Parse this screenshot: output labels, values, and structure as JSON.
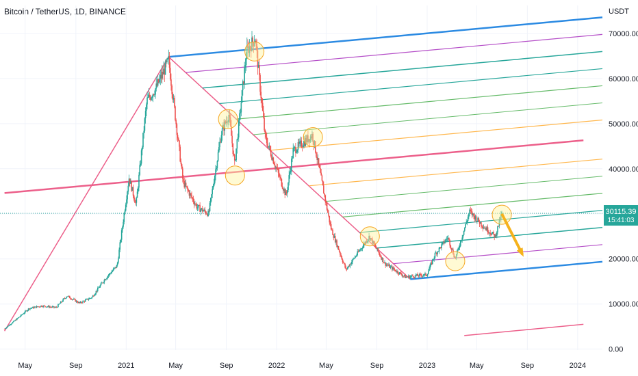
{
  "header": {
    "symbol_title": "Bitcoin / TetherUS, 1D, BINANCE"
  },
  "chart_data": {
    "type": "candlestick",
    "title": "Bitcoin / TetherUS, 1D, BINANCE",
    "quote_unit": "USDT",
    "ylim": [
      0,
      75000
    ],
    "xlim": [
      "2020-03-01",
      "2024-03-01"
    ],
    "y_ticks": [
      "70000.00",
      "60000.00",
      "50000.00",
      "40000.00",
      "30000.00",
      "20000.00",
      "10000.00",
      "0.00"
    ],
    "y_tick_values": [
      70000,
      60000,
      50000,
      40000,
      30000,
      20000,
      10000,
      0
    ],
    "x_ticks": [
      "May",
      "Sep",
      "2021",
      "May",
      "Sep",
      "2022",
      "May",
      "Sep",
      "2023",
      "May",
      "Sep",
      "2024"
    ],
    "x_tick_dates": [
      "2020-05-01",
      "2020-09-01",
      "2021-01-01",
      "2021-05-01",
      "2021-09-01",
      "2022-01-01",
      "2022-05-01",
      "2022-09-01",
      "2023-01-01",
      "2023-05-01",
      "2023-09-01",
      "2024-01-01"
    ],
    "current_price": {
      "label": "30115.39",
      "value": 30115.39,
      "countdown": "15:41:03"
    },
    "price_path": [
      [
        "2020-03-12",
        4500
      ],
      [
        "2020-04-15",
        7000
      ],
      [
        "2020-05-10",
        9000
      ],
      [
        "2020-06-10",
        9600
      ],
      [
        "2020-07-15",
        9200
      ],
      [
        "2020-08-10",
        11800
      ],
      [
        "2020-09-10",
        10200
      ],
      [
        "2020-10-10",
        11500
      ],
      [
        "2020-11-10",
        15500
      ],
      [
        "2020-12-10",
        18500
      ],
      [
        "2021-01-08",
        38000
      ],
      [
        "2021-01-25",
        32000
      ],
      [
        "2021-02-20",
        55000
      ],
      [
        "2021-03-15",
        58000
      ],
      [
        "2021-04-14",
        64000
      ],
      [
        "2021-05-19",
        37000
      ],
      [
        "2021-06-22",
        31500
      ],
      [
        "2021-07-20",
        30000
      ],
      [
        "2021-08-20",
        48000
      ],
      [
        "2021-09-07",
        52000
      ],
      [
        "2021-09-21",
        41000
      ],
      [
        "2021-10-20",
        66000
      ],
      [
        "2021-11-10",
        69000
      ],
      [
        "2021-12-04",
        47000
      ],
      [
        "2022-01-24",
        34000
      ],
      [
        "2022-02-10",
        44000
      ],
      [
        "2022-03-29",
        47500
      ],
      [
        "2022-05-12",
        27000
      ],
      [
        "2022-06-18",
        17600
      ],
      [
        "2022-08-14",
        25000
      ],
      [
        "2022-09-20",
        19000
      ],
      [
        "2022-11-09",
        16000
      ],
      [
        "2022-12-31",
        16500
      ],
      [
        "2023-01-20",
        21000
      ],
      [
        "2023-02-20",
        24800
      ],
      [
        "2023-03-10",
        20000
      ],
      [
        "2023-04-14",
        30500
      ],
      [
        "2023-05-20",
        27000
      ],
      [
        "2023-06-15",
        25000
      ],
      [
        "2023-07-01",
        30115.39
      ]
    ],
    "annotations": {
      "pitchfork_pivots": [
        [
          "2020-03-12",
          4000
        ],
        [
          "2021-04-14",
          64800
        ],
        [
          "2022-11-21",
          15500
        ]
      ],
      "median_line": [
        [
          "2020-03-12",
          34600
        ],
        [
          "2024-01-15",
          46300
        ]
      ],
      "forecast_arrow": [
        [
          "2023-07-01",
          30000
        ],
        [
          "2023-08-20",
          21000
        ]
      ],
      "highlight_circles": [
        [
          "2021-11-08",
          66000
        ],
        [
          "2021-09-05",
          51000
        ],
        [
          "2021-09-22",
          38500
        ],
        [
          "2022-03-30",
          47000
        ],
        [
          "2022-08-15",
          25000
        ],
        [
          "2023-03-10",
          19500
        ],
        [
          "2023-07-01",
          29800
        ]
      ],
      "lower_channel_line": [
        [
          "2023-04-01",
          3000
        ],
        [
          "2024-01-15",
          5500
        ]
      ]
    }
  },
  "colors": {
    "up": "#26a69a",
    "down": "#ef5350",
    "pitchfork_pink": "#ec5f8a",
    "blue": "#2b8ae2",
    "purple": "#b54fc8",
    "teal": "#26a69a",
    "green": "#66bb6a",
    "orange": "#ffb74d",
    "circle_fill": "#fff59d",
    "circle_stroke": "#f5a623",
    "arrow": "#f5b21c",
    "price_tag": "#26a69a",
    "grid": "#f0f3fa",
    "dotted": "#26a69a"
  }
}
